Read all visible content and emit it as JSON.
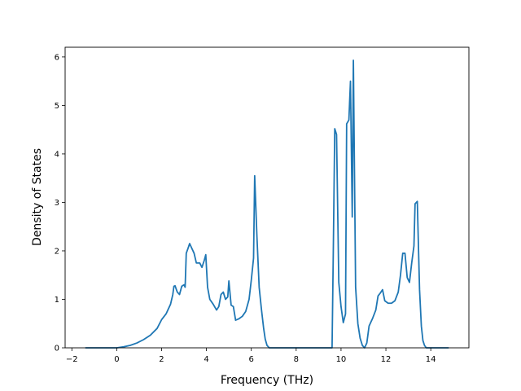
{
  "chart_data": {
    "type": "line",
    "title": "",
    "xlabel": "Frequency (THz)",
    "ylabel": "Density of States",
    "xlim": [
      -2.3,
      15.7
    ],
    "ylim": [
      0,
      6.2
    ],
    "xticks": [
      -2,
      0,
      2,
      4,
      6,
      8,
      10,
      12,
      14
    ],
    "yticks": [
      0,
      1,
      2,
      3,
      4,
      5,
      6
    ],
    "grid": false,
    "series": [
      {
        "color": "#1f77b4",
        "points": [
          [
            -1.4,
            0
          ],
          [
            0.0,
            0.0
          ],
          [
            0.3,
            0.02
          ],
          [
            0.6,
            0.05
          ],
          [
            0.9,
            0.1
          ],
          [
            1.2,
            0.17
          ],
          [
            1.5,
            0.26
          ],
          [
            1.8,
            0.4
          ],
          [
            2.0,
            0.58
          ],
          [
            2.2,
            0.7
          ],
          [
            2.4,
            0.9
          ],
          [
            2.5,
            1.1
          ],
          [
            2.55,
            1.27
          ],
          [
            2.6,
            1.28
          ],
          [
            2.7,
            1.15
          ],
          [
            2.8,
            1.1
          ],
          [
            2.9,
            1.27
          ],
          [
            3.0,
            1.3
          ],
          [
            3.05,
            1.25
          ],
          [
            3.1,
            1.95
          ],
          [
            3.2,
            2.08
          ],
          [
            3.25,
            2.15
          ],
          [
            3.35,
            2.05
          ],
          [
            3.45,
            1.95
          ],
          [
            3.55,
            1.75
          ],
          [
            3.7,
            1.75
          ],
          [
            3.8,
            1.66
          ],
          [
            3.9,
            1.8
          ],
          [
            3.97,
            1.92
          ],
          [
            4.05,
            1.25
          ],
          [
            4.15,
            1.0
          ],
          [
            4.3,
            0.9
          ],
          [
            4.45,
            0.78
          ],
          [
            4.55,
            0.85
          ],
          [
            4.65,
            1.1
          ],
          [
            4.75,
            1.15
          ],
          [
            4.85,
            1.0
          ],
          [
            4.95,
            1.05
          ],
          [
            5.0,
            1.38
          ],
          [
            5.1,
            0.88
          ],
          [
            5.2,
            0.85
          ],
          [
            5.3,
            0.57
          ],
          [
            5.45,
            0.6
          ],
          [
            5.6,
            0.65
          ],
          [
            5.75,
            0.75
          ],
          [
            5.9,
            1.0
          ],
          [
            6.0,
            1.4
          ],
          [
            6.1,
            1.85
          ],
          [
            6.15,
            3.55
          ],
          [
            6.25,
            2.3
          ],
          [
            6.35,
            1.25
          ],
          [
            6.45,
            0.8
          ],
          [
            6.55,
            0.4
          ],
          [
            6.62,
            0.18
          ],
          [
            6.7,
            0.05
          ],
          [
            6.8,
            0
          ],
          [
            9.6,
            0
          ],
          [
            9.65,
            1.8
          ],
          [
            9.72,
            4.52
          ],
          [
            9.8,
            4.4
          ],
          [
            9.9,
            1.35
          ],
          [
            10.0,
            0.85
          ],
          [
            10.1,
            0.52
          ],
          [
            10.2,
            0.7
          ],
          [
            10.25,
            4.62
          ],
          [
            10.35,
            4.7
          ],
          [
            10.42,
            5.5
          ],
          [
            10.5,
            2.7
          ],
          [
            10.55,
            5.93
          ],
          [
            10.65,
            1.25
          ],
          [
            10.75,
            0.5
          ],
          [
            10.85,
            0.2
          ],
          [
            10.95,
            0.05
          ],
          [
            11.05,
            0.0
          ],
          [
            11.15,
            0.1
          ],
          [
            11.25,
            0.45
          ],
          [
            11.4,
            0.6
          ],
          [
            11.55,
            0.78
          ],
          [
            11.65,
            1.07
          ],
          [
            11.75,
            1.13
          ],
          [
            11.85,
            1.2
          ],
          [
            11.95,
            0.97
          ],
          [
            12.1,
            0.92
          ],
          [
            12.25,
            0.92
          ],
          [
            12.4,
            0.97
          ],
          [
            12.55,
            1.15
          ],
          [
            12.65,
            1.5
          ],
          [
            12.75,
            1.95
          ],
          [
            12.85,
            1.95
          ],
          [
            12.95,
            1.45
          ],
          [
            13.05,
            1.35
          ],
          [
            13.15,
            1.75
          ],
          [
            13.25,
            2.1
          ],
          [
            13.3,
            2.97
          ],
          [
            13.4,
            3.02
          ],
          [
            13.5,
            1.2
          ],
          [
            13.58,
            0.45
          ],
          [
            13.65,
            0.15
          ],
          [
            13.72,
            0.05
          ],
          [
            13.8,
            0
          ],
          [
            14.8,
            0
          ]
        ]
      }
    ]
  }
}
